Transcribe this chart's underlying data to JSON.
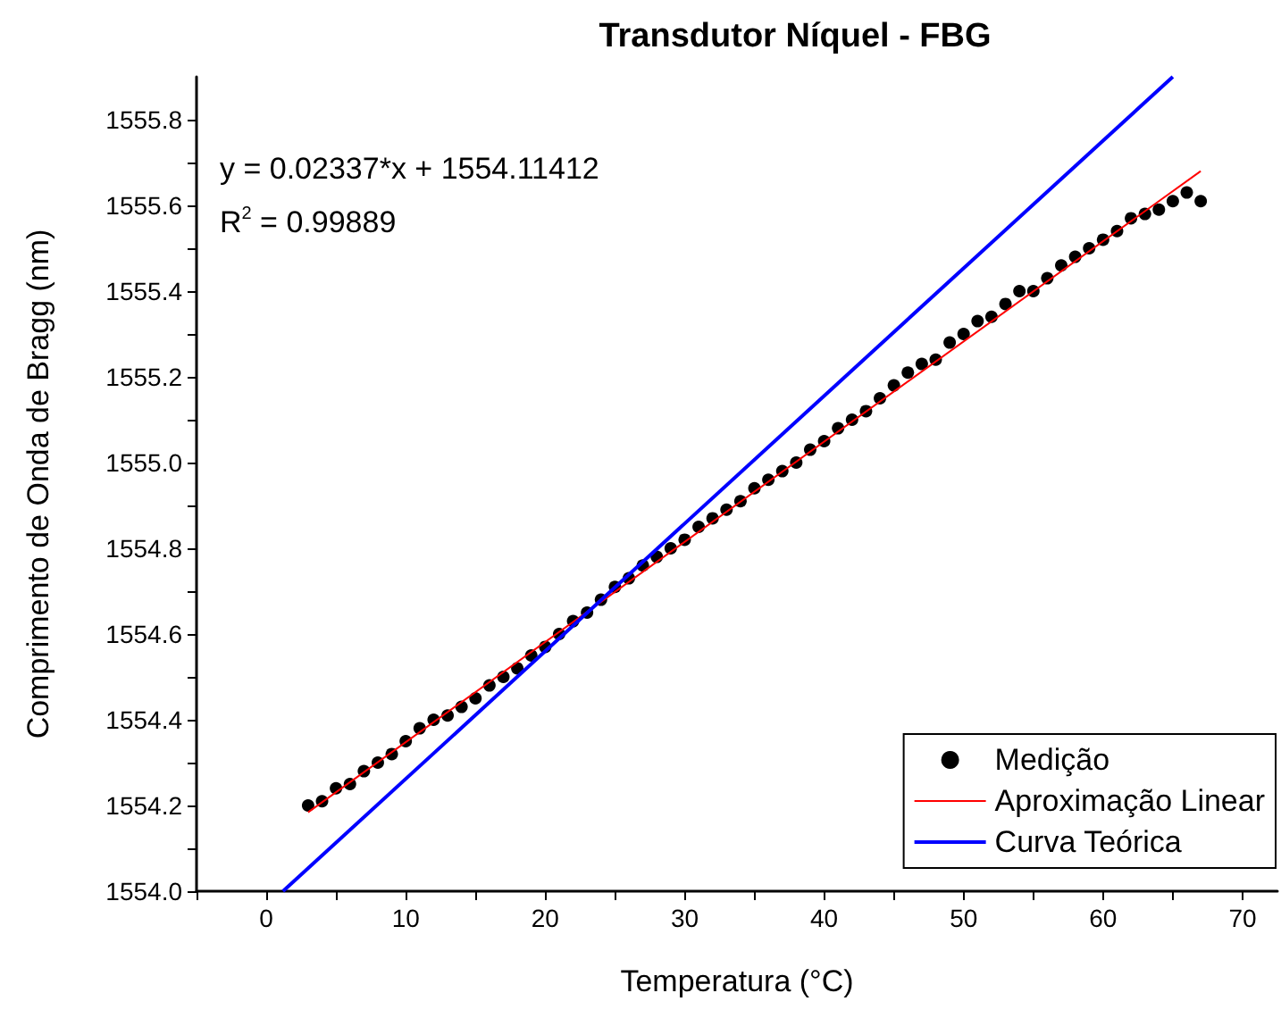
{
  "chart_data": {
    "type": "scatter",
    "title": "Transdutor Níquel - FBG",
    "xlabel": "Temperatura (°C)",
    "ylabel": "Comprimento de Onda de Bragg (nm)",
    "annotations": [
      "y = 0.02337*x + 1554.11412",
      "R$^{2}$ = 0.99889"
    ],
    "x": [
      3,
      4,
      5,
      6,
      7,
      8,
      9,
      10,
      11,
      12,
      13,
      14,
      15,
      16,
      17,
      18,
      19,
      20,
      21,
      22,
      23,
      24,
      25,
      26,
      27,
      28,
      29,
      30,
      31,
      32,
      33,
      34,
      35,
      36,
      37,
      38,
      39,
      40,
      41,
      42,
      43,
      44,
      45,
      46,
      47,
      48,
      49,
      50,
      51,
      52,
      53,
      54,
      55,
      56,
      57,
      58,
      59,
      60,
      61,
      62,
      63,
      64,
      65,
      66,
      67
    ],
    "series": [
      {
        "name": "Medição",
        "color": "#000000",
        "marker": "circle",
        "values": [
          1554.2,
          1554.21,
          1554.24,
          1554.25,
          1554.28,
          1554.3,
          1554.32,
          1554.35,
          1554.38,
          1554.4,
          1554.41,
          1554.43,
          1554.45,
          1554.48,
          1554.5,
          1554.52,
          1554.55,
          1554.57,
          1554.6,
          1554.63,
          1554.65,
          1554.68,
          1554.71,
          1554.73,
          1554.76,
          1554.78,
          1554.8,
          1554.82,
          1554.85,
          1554.87,
          1554.89,
          1554.91,
          1554.94,
          1554.96,
          1554.98,
          1555.0,
          1555.03,
          1555.05,
          1555.08,
          1555.1,
          1555.12,
          1555.15,
          1555.18,
          1555.21,
          1555.23,
          1555.24,
          1555.28,
          1555.3,
          1555.33,
          1555.34,
          1555.37,
          1555.4,
          1555.4,
          1555.43,
          1555.46,
          1555.48,
          1555.5,
          1555.52,
          1555.54,
          1555.57,
          1555.58,
          1555.59,
          1555.61,
          1555.63,
          1555.61
        ]
      },
      {
        "name": "Aproximação Linear",
        "type": "line",
        "color": "#ff0000",
        "marker": "none",
        "x": [
          3,
          67
        ],
        "values": [
          1554.184,
          1555.68
        ]
      },
      {
        "name": "Curva Teórica",
        "type": "line",
        "color": "#0000ff",
        "marker": "none",
        "x": [
          1.2,
          65
        ],
        "values": [
          1554.0,
          1555.9
        ]
      }
    ],
    "xlim": [
      -5,
      72.5
    ],
    "xticks": [
      {
        "value": -5,
        "label": null
      },
      0,
      {
        "value": 5,
        "label": null
      },
      10,
      {
        "value": 15,
        "label": null
      },
      20,
      {
        "value": 25,
        "label": null
      },
      30,
      {
        "value": 35,
        "label": null
      },
      40,
      {
        "value": 45,
        "label": null
      },
      50,
      {
        "value": 55,
        "label": null
      },
      60,
      {
        "value": 65,
        "label": null
      },
      70
    ],
    "ylim": [
      1554.0,
      1555.9
    ],
    "yticks": [
      {
        "value": 1554.0,
        "label": "1554.0"
      },
      {
        "value": 1554.1,
        "label": null
      },
      {
        "value": 1554.2,
        "label": "1554.2"
      },
      {
        "value": 1554.3,
        "label": null
      },
      {
        "value": 1554.4,
        "label": "1554.4"
      },
      {
        "value": 1554.5,
        "label": null
      },
      {
        "value": 1554.6,
        "label": "1554.6"
      },
      {
        "value": 1554.7,
        "label": null
      },
      {
        "value": 1554.8,
        "label": "1554.8"
      },
      {
        "value": 1554.9,
        "label": null
      },
      {
        "value": 1555.0,
        "label": "1555.0"
      },
      {
        "value": 1555.1,
        "label": null
      },
      {
        "value": 1555.2,
        "label": "1555.2"
      },
      {
        "value": 1555.3,
        "label": null
      },
      {
        "value": 1555.4,
        "label": "1555.4"
      },
      {
        "value": 1555.5,
        "label": null
      },
      {
        "value": 1555.6,
        "label": "1555.6"
      },
      {
        "value": 1555.7,
        "label": null
      },
      {
        "value": 1555.8,
        "label": "1555.8"
      }
    ],
    "grid": false,
    "legend": "bottom right"
  }
}
